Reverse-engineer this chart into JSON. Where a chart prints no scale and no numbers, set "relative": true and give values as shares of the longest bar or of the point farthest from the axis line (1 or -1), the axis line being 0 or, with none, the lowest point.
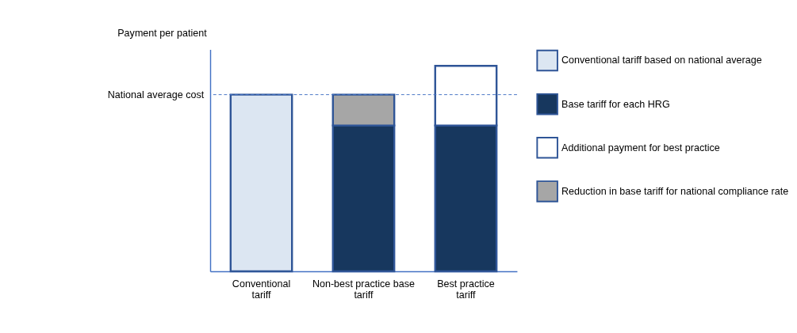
{
  "chart_data": {
    "type": "bar",
    "stacked": true,
    "relative": true,
    "ylabel": "Payment per patient",
    "categories": [
      "Conventional tariff",
      "Non-best practice base tariff",
      "Best practice tariff"
    ],
    "series": [
      {
        "name": "Conventional tariff based on national average",
        "color": "#dce6f2",
        "values": [
          0.86,
          null,
          null
        ]
      },
      {
        "name": "Base tariff for each HRG",
        "color": "#17375e",
        "values": [
          null,
          0.71,
          0.71
        ]
      },
      {
        "name": "Additional payment for best practice",
        "color": "#ffffff",
        "values": [
          null,
          null,
          0.29
        ]
      },
      {
        "name": "Reduction in base tariff for national compliance rate",
        "color": "#a6a6a6",
        "values": [
          null,
          0.15,
          null
        ]
      }
    ],
    "ref_lines": [
      {
        "axis": "y",
        "value": 0.86,
        "label": "National average cost",
        "color": "#4472c4",
        "line_style": "dashed"
      }
    ],
    "legend": "right",
    "grid": false
  }
}
